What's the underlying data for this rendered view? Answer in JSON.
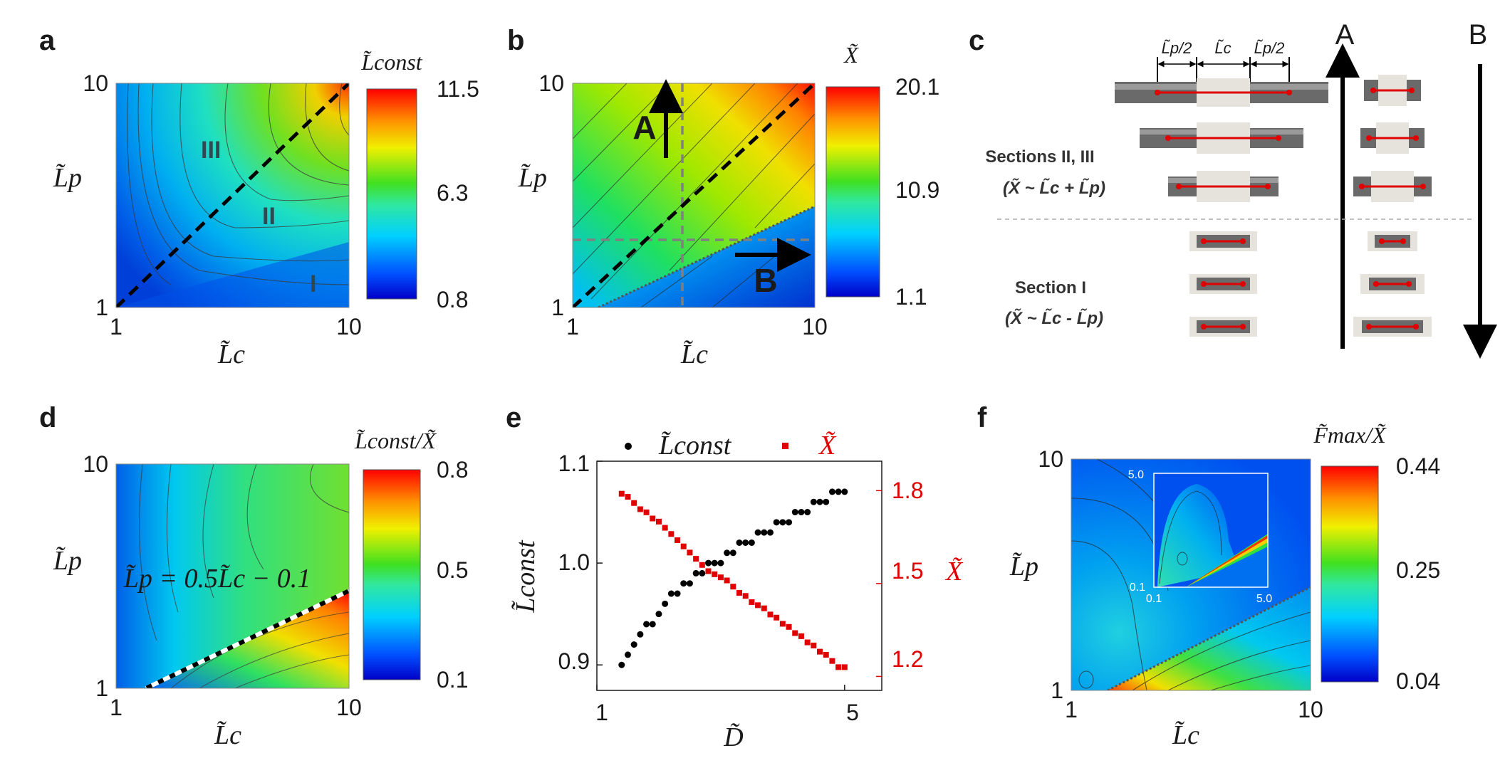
{
  "panels": {
    "a": {
      "label": "a",
      "colorbar": {
        "title": "L̃const",
        "ticks": [
          "11.5",
          "6.3",
          "0.8"
        ],
        "min": 0.8,
        "max": 11.5
      },
      "x_ticks": [
        "1",
        "10"
      ],
      "y_ticks": [
        "10",
        "1"
      ],
      "xlabel": "L̃c",
      "ylabel": "L̃p",
      "regions": [
        "III",
        "II",
        "I"
      ]
    },
    "b": {
      "label": "b",
      "colorbar": {
        "title": "X̃",
        "ticks": [
          "20.1",
          "10.9",
          "1.1"
        ],
        "min": 1.1,
        "max": 20.1
      },
      "x_ticks": [
        "1",
        "10"
      ],
      "y_ticks": [
        "10",
        "1"
      ],
      "xlabel": "L̃c",
      "ylabel": "L̃p",
      "arrows": [
        "A",
        "B"
      ]
    },
    "c": {
      "label": "c",
      "column_a": "A",
      "column_b": "B",
      "dims": [
        "L̃p/2",
        "L̃c",
        "L̃p/2"
      ],
      "group1_title": "Sections II, III",
      "group1_formula": "(X̃ ~ L̃c + L̃p)",
      "group2_title": "Section I",
      "group2_formula": "(X̃ ~ L̃c - L̃p)"
    },
    "d": {
      "label": "d",
      "colorbar": {
        "title": "L̃const/X̃",
        "ticks": [
          "0.8",
          "0.5",
          "0.1"
        ],
        "min": 0.1,
        "max": 0.8
      },
      "x_ticks": [
        "1",
        "10"
      ],
      "y_ticks": [
        "10",
        "1"
      ],
      "xlabel": "L̃c",
      "ylabel": "L̃p",
      "line_label": "L̃p = 0.5L̃c − 0.1"
    },
    "e": {
      "label": "e",
      "legend": [
        "L̃const",
        "X̃"
      ],
      "xlabel": "D̃",
      "ylabel_left": "L̃const",
      "ylabel_right": "X̃",
      "x_ticks": [
        "1",
        "5"
      ],
      "y_left_ticks": [
        "1.1",
        "1.0",
        "0.9"
      ],
      "y_right_ticks": [
        "1.8",
        "1.5",
        "1.2"
      ]
    },
    "f": {
      "label": "f",
      "colorbar": {
        "title": "F̃max/X̃",
        "ticks": [
          "0.44",
          "0.25",
          "0.04"
        ],
        "min": 0.04,
        "max": 0.44
      },
      "x_ticks": [
        "1",
        "10"
      ],
      "y_ticks": [
        "10",
        "1"
      ],
      "xlabel": "L̃c",
      "ylabel": "L̃p",
      "inset_ticks": {
        "x": [
          "0.1",
          "5.0"
        ],
        "y": [
          "5.0",
          "0.1"
        ]
      }
    }
  },
  "chart_data": [
    {
      "panel": "a",
      "type": "heatmap",
      "x_axis": {
        "label": "L̃c",
        "range": [
          1,
          10
        ],
        "scale": "log"
      },
      "y_axis": {
        "label": "L̃p",
        "range": [
          1,
          10
        ],
        "scale": "log"
      },
      "value_label": "L̃const",
      "value_range": [
        0.8,
        11.5
      ],
      "colormap": "jet",
      "contour_lines": true,
      "region_labels": [
        "I",
        "II",
        "III"
      ]
    },
    {
      "panel": "b",
      "type": "heatmap",
      "x_axis": {
        "label": "L̃c",
        "range": [
          1,
          10
        ],
        "scale": "log"
      },
      "y_axis": {
        "label": "L̃p",
        "range": [
          1,
          10
        ],
        "scale": "log"
      },
      "value_label": "X̃",
      "value_range": [
        1.1,
        20.1
      ],
      "colormap": "jet",
      "contour_lines": true,
      "annotations": [
        "A",
        "B"
      ]
    },
    {
      "panel": "d",
      "type": "heatmap",
      "x_axis": {
        "label": "L̃c",
        "range": [
          1,
          10
        ],
        "scale": "log"
      },
      "y_axis": {
        "label": "L̃p",
        "range": [
          1,
          10
        ],
        "scale": "log"
      },
      "value_label": "L̃const/X̃",
      "value_range": [
        0.1,
        0.8
      ],
      "colormap": "jet",
      "contour_lines": true
    },
    {
      "panel": "e",
      "type": "scatter",
      "x_axis": {
        "label": "D̃",
        "range": [
          1,
          5.6
        ]
      },
      "y_left": {
        "label": "L̃const",
        "range": [
          0.875,
          1.1
        ]
      },
      "y_right": {
        "label": "X̃",
        "range": [
          1.155,
          1.895
        ]
      },
      "series": [
        {
          "name": "L̃const",
          "axis": "left",
          "color": "#000000",
          "x": [
            1.4,
            1.5,
            1.6,
            1.7,
            1.8,
            1.9,
            2.0,
            2.1,
            2.2,
            2.3,
            2.4,
            2.5,
            2.6,
            2.7,
            2.8,
            2.9,
            3.0,
            3.1,
            3.2,
            3.3,
            3.4,
            3.5,
            3.6,
            3.7,
            3.8,
            3.9,
            4.0,
            4.1,
            4.2,
            4.3,
            4.4,
            4.5,
            4.6,
            4.7,
            4.8,
            4.9,
            5.0
          ],
          "y": [
            0.9,
            0.91,
            0.92,
            0.93,
            0.94,
            0.94,
            0.95,
            0.96,
            0.97,
            0.97,
            0.98,
            0.98,
            0.99,
            0.99,
            1.0,
            1.0,
            1.0,
            1.01,
            1.01,
            1.02,
            1.02,
            1.02,
            1.03,
            1.03,
            1.03,
            1.04,
            1.04,
            1.04,
            1.05,
            1.05,
            1.05,
            1.06,
            1.06,
            1.06,
            1.07,
            1.07,
            1.07
          ]
        },
        {
          "name": "X̃",
          "axis": "right",
          "color": "#e00000",
          "x": [
            1.4,
            1.5,
            1.6,
            1.7,
            1.8,
            1.9,
            2.0,
            2.1,
            2.2,
            2.3,
            2.4,
            2.5,
            2.6,
            2.7,
            2.8,
            2.9,
            3.0,
            3.1,
            3.2,
            3.3,
            3.4,
            3.5,
            3.6,
            3.7,
            3.8,
            3.9,
            4.0,
            4.1,
            4.2,
            4.3,
            4.4,
            4.5,
            4.6,
            4.7,
            4.8,
            4.9,
            5.0
          ],
          "y": [
            1.79,
            1.78,
            1.76,
            1.74,
            1.73,
            1.71,
            1.7,
            1.68,
            1.66,
            1.64,
            1.62,
            1.6,
            1.58,
            1.56,
            1.54,
            1.53,
            1.52,
            1.51,
            1.49,
            1.47,
            1.46,
            1.44,
            1.43,
            1.42,
            1.4,
            1.39,
            1.37,
            1.36,
            1.34,
            1.33,
            1.31,
            1.3,
            1.28,
            1.27,
            1.25,
            1.23,
            1.23
          ]
        }
      ]
    },
    {
      "panel": "f",
      "type": "heatmap",
      "x_axis": {
        "label": "L̃c",
        "range": [
          1,
          10
        ],
        "scale": "log"
      },
      "y_axis": {
        "label": "L̃p",
        "range": [
          1,
          10
        ],
        "scale": "log"
      },
      "value_label": "F̃max/X̃",
      "value_range": [
        0.04,
        0.44
      ],
      "colormap": "jet",
      "contour_lines": true,
      "inset": {
        "x_range": [
          0.1,
          5.0
        ],
        "y_range": [
          0.1,
          5.0
        ]
      }
    }
  ]
}
